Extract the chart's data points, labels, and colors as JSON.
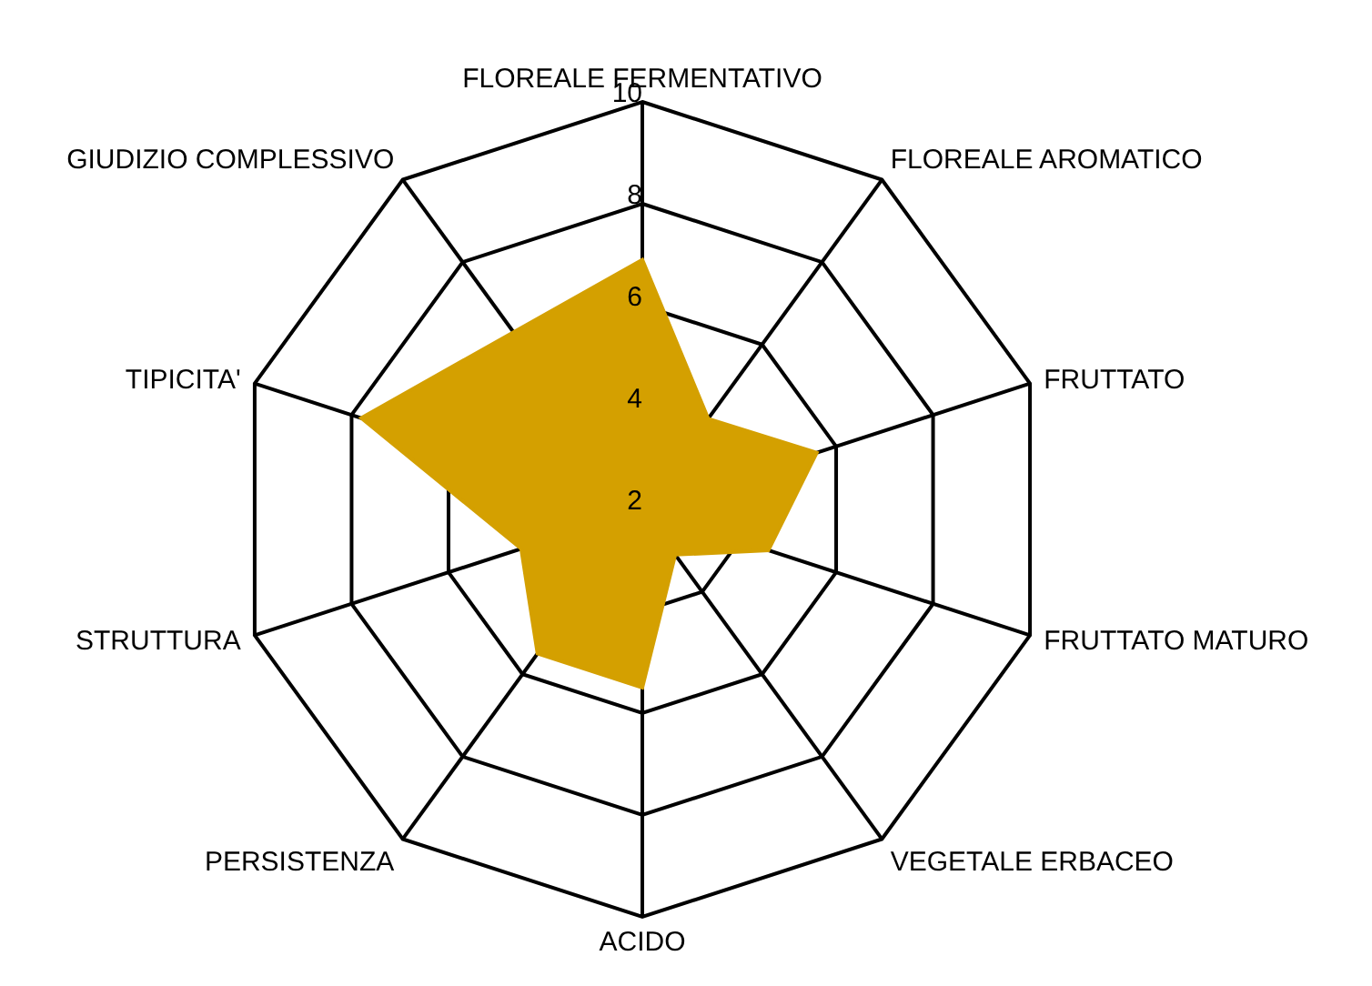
{
  "chart_data": {
    "type": "radar",
    "categories": [
      "FLOREALE FERMENTATIVO",
      "FLOREALE AROMATICO",
      "FRUTTATO",
      "FRUTTATO MATURO",
      "VEGETALE ERBACEO",
      "ACIDO",
      "PERSISTENZA",
      "STRUTTURA",
      "TIPICITA'",
      "GIUDIZIO COMPLESSIVO"
    ],
    "series": [
      {
        "color": "#d4a000",
        "values": [
          6.9,
          4.2,
          5.6,
          4.6,
          3.1,
          5.5,
          5.5,
          4.5,
          7.8,
          6.3
        ]
      }
    ],
    "ylim": [
      2,
      10
    ],
    "yticks": [
      2,
      4,
      6,
      8,
      10
    ],
    "grid": true,
    "legend": false
  }
}
